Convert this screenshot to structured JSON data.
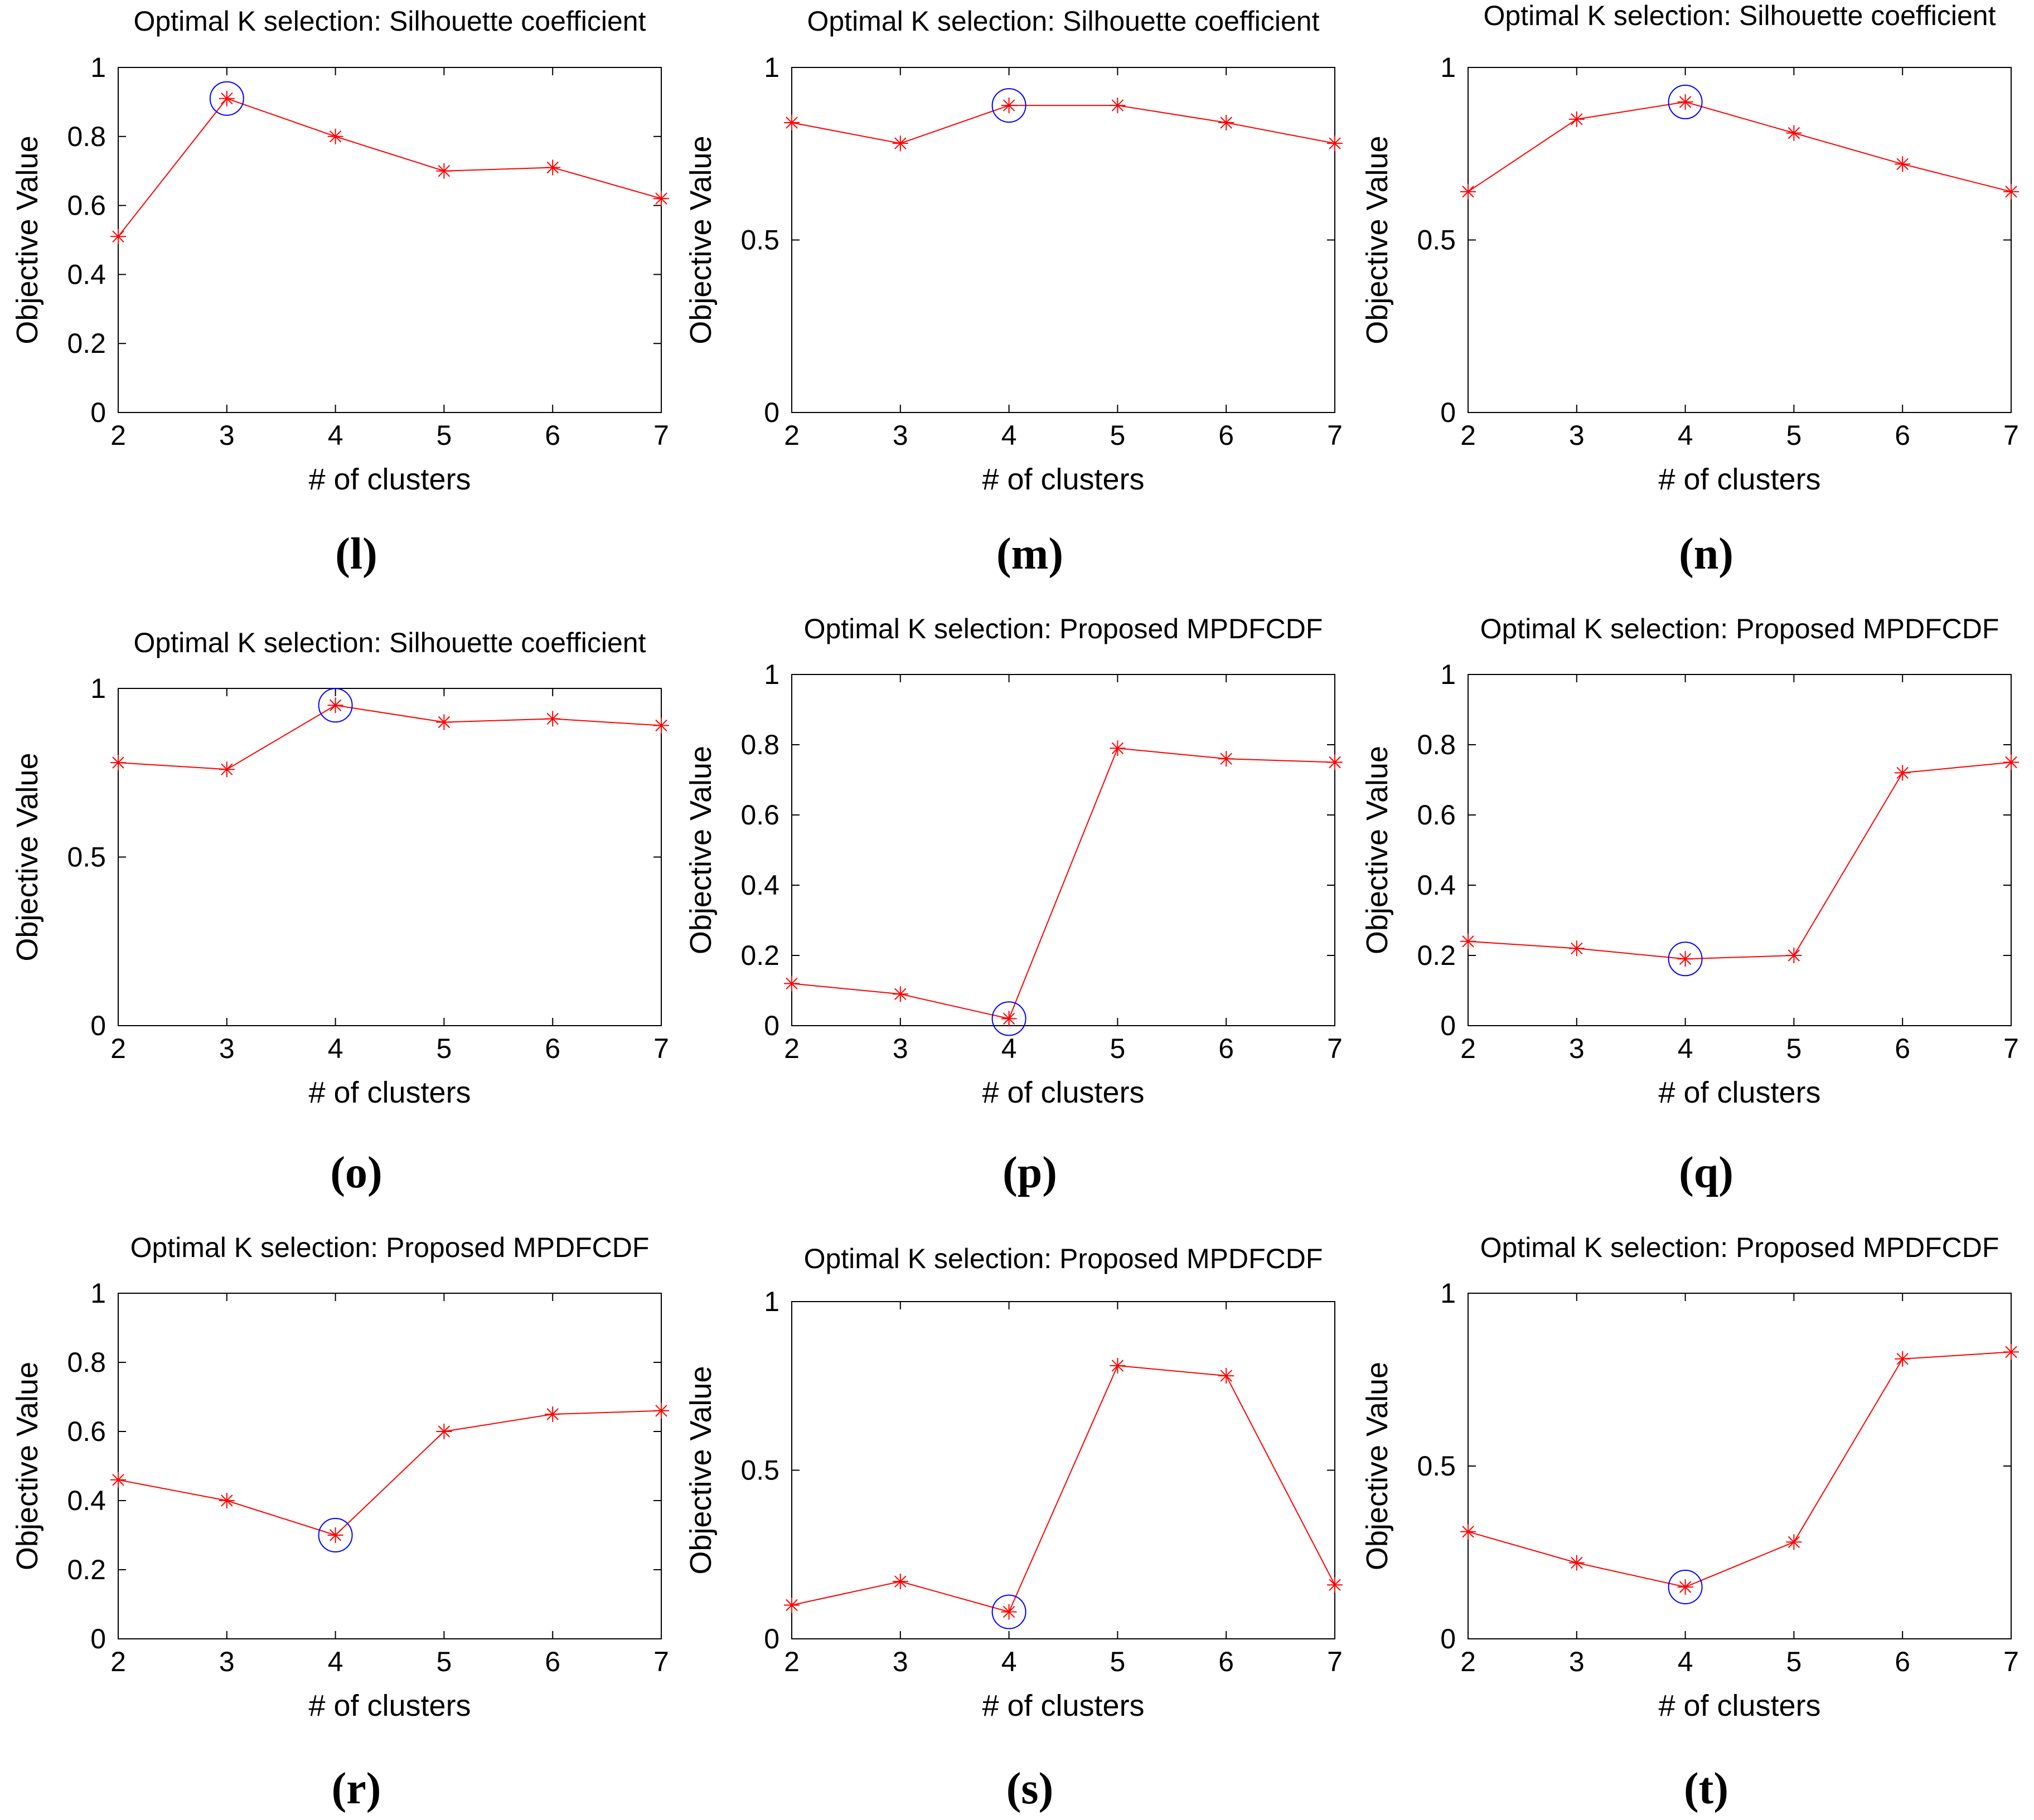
{
  "chart_data": [
    {
      "label": "l",
      "type": "line",
      "title": "Optimal K selection: Silhouette coefficient",
      "xlabel": "# of clusters",
      "ylabel": "Objective Value",
      "x": [
        2,
        3,
        4,
        5,
        6,
        7
      ],
      "values": [
        0.51,
        0.91,
        0.8,
        0.7,
        0.71,
        0.62
      ],
      "ylim": [
        0,
        1
      ],
      "yticks": [
        0,
        0.2,
        0.4,
        0.6,
        0.8,
        1
      ],
      "ytick_labels": [
        "0",
        "0.2",
        "0.4",
        "0.6",
        "0.8",
        "1"
      ],
      "selected_k": 3,
      "colors": {
        "line": "#ff0000",
        "marker": "#ff0000",
        "highlight": "#0000ff"
      }
    },
    {
      "label": "m",
      "type": "line",
      "title": "Optimal K selection: Silhouette coefficient",
      "xlabel": "# of clusters",
      "ylabel": "Objective Value",
      "x": [
        2,
        3,
        4,
        5,
        6,
        7
      ],
      "values": [
        0.84,
        0.78,
        0.89,
        0.89,
        0.84,
        0.78
      ],
      "ylim": [
        0,
        1
      ],
      "yticks": [
        0,
        0.5,
        1
      ],
      "ytick_labels": [
        "0",
        "0.5",
        "1"
      ],
      "selected_k": 4,
      "colors": {
        "line": "#ff0000",
        "marker": "#ff0000",
        "highlight": "#0000ff"
      }
    },
    {
      "label": "n",
      "type": "line",
      "title": "Optimal K selection: Silhouette coefficient",
      "xlabel": "# of clusters",
      "ylabel": "Objective Value",
      "x": [
        2,
        3,
        4,
        5,
        6,
        7
      ],
      "values": [
        0.64,
        0.85,
        0.9,
        0.81,
        0.72,
        0.64
      ],
      "ylim": [
        0,
        1
      ],
      "yticks": [
        0,
        0.5,
        1
      ],
      "ytick_labels": [
        "0",
        "0.5",
        "1"
      ],
      "selected_k": 4,
      "colors": {
        "line": "#ff0000",
        "marker": "#ff0000",
        "highlight": "#0000ff"
      }
    },
    {
      "label": "o",
      "type": "line",
      "title": "Optimal K selection: Silhouette coefficient",
      "xlabel": "# of clusters",
      "ylabel": "Objective Value",
      "x": [
        2,
        3,
        4,
        5,
        6,
        7
      ],
      "values": [
        0.78,
        0.76,
        0.95,
        0.9,
        0.91,
        0.89
      ],
      "ylim": [
        0,
        1
      ],
      "yticks": [
        0,
        0.5,
        1
      ],
      "ytick_labels": [
        "0",
        "0.5",
        "1"
      ],
      "selected_k": 4,
      "colors": {
        "line": "#ff0000",
        "marker": "#ff0000",
        "highlight": "#0000ff"
      }
    },
    {
      "label": "p",
      "type": "line",
      "title": "Optimal K selection: Proposed MPDFCDF",
      "xlabel": "# of clusters",
      "ylabel": "Objective Value",
      "x": [
        2,
        3,
        4,
        5,
        6,
        7
      ],
      "values": [
        0.12,
        0.09,
        0.02,
        0.79,
        0.76,
        0.75
      ],
      "ylim": [
        0,
        1
      ],
      "yticks": [
        0,
        0.2,
        0.4,
        0.6,
        0.8,
        1
      ],
      "ytick_labels": [
        "0",
        "0.2",
        "0.4",
        "0.6",
        "0.8",
        "1"
      ],
      "selected_k": 4,
      "colors": {
        "line": "#ff0000",
        "marker": "#ff0000",
        "highlight": "#0000ff"
      }
    },
    {
      "label": "q",
      "type": "line",
      "title": "Optimal K selection: Proposed MPDFCDF",
      "xlabel": "# of clusters",
      "ylabel": "Objective Value",
      "x": [
        2,
        3,
        4,
        5,
        6,
        7
      ],
      "values": [
        0.24,
        0.22,
        0.19,
        0.2,
        0.72,
        0.75
      ],
      "ylim": [
        0,
        1
      ],
      "yticks": [
        0,
        0.2,
        0.4,
        0.6,
        0.8,
        1
      ],
      "ytick_labels": [
        "0",
        "0.2",
        "0.4",
        "0.6",
        "0.8",
        "1"
      ],
      "selected_k": 4,
      "colors": {
        "line": "#ff0000",
        "marker": "#ff0000",
        "highlight": "#0000ff"
      }
    },
    {
      "label": "r",
      "type": "line",
      "title": "Optimal K selection: Proposed MPDFCDF",
      "xlabel": "# of clusters",
      "ylabel": "Objective Value",
      "x": [
        2,
        3,
        4,
        5,
        6,
        7
      ],
      "values": [
        0.46,
        0.4,
        0.3,
        0.6,
        0.65,
        0.66
      ],
      "ylim": [
        0,
        1
      ],
      "yticks": [
        0,
        0.2,
        0.4,
        0.6,
        0.8,
        1
      ],
      "ytick_labels": [
        "0",
        "0.2",
        "0.4",
        "0.6",
        "0.8",
        "1"
      ],
      "selected_k": 4,
      "colors": {
        "line": "#ff0000",
        "marker": "#ff0000",
        "highlight": "#0000ff"
      }
    },
    {
      "label": "s",
      "type": "line",
      "title": "Optimal K selection: Proposed MPDFCDF",
      "xlabel": "# of clusters",
      "ylabel": "Objective Value",
      "x": [
        2,
        3,
        4,
        5,
        6,
        7
      ],
      "values": [
        0.1,
        0.17,
        0.08,
        0.81,
        0.78,
        0.16
      ],
      "ylim": [
        0,
        1
      ],
      "yticks": [
        0,
        0.5,
        1
      ],
      "ytick_labels": [
        "0",
        "0.5",
        "1"
      ],
      "selected_k": 4,
      "colors": {
        "line": "#ff0000",
        "marker": "#ff0000",
        "highlight": "#0000ff"
      }
    },
    {
      "label": "t",
      "type": "line",
      "title": "Optimal K selection: Proposed MPDFCDF",
      "xlabel": "# of clusters",
      "ylabel": "Objective Value",
      "x": [
        2,
        3,
        4,
        5,
        6,
        7
      ],
      "values": [
        0.31,
        0.22,
        0.15,
        0.28,
        0.81,
        0.83
      ],
      "ylim": [
        0,
        1
      ],
      "yticks": [
        0,
        0.5,
        1
      ],
      "ytick_labels": [
        "0",
        "0.5",
        "1"
      ],
      "selected_k": 4,
      "colors": {
        "line": "#ff0000",
        "marker": "#ff0000",
        "highlight": "#0000ff"
      }
    }
  ]
}
